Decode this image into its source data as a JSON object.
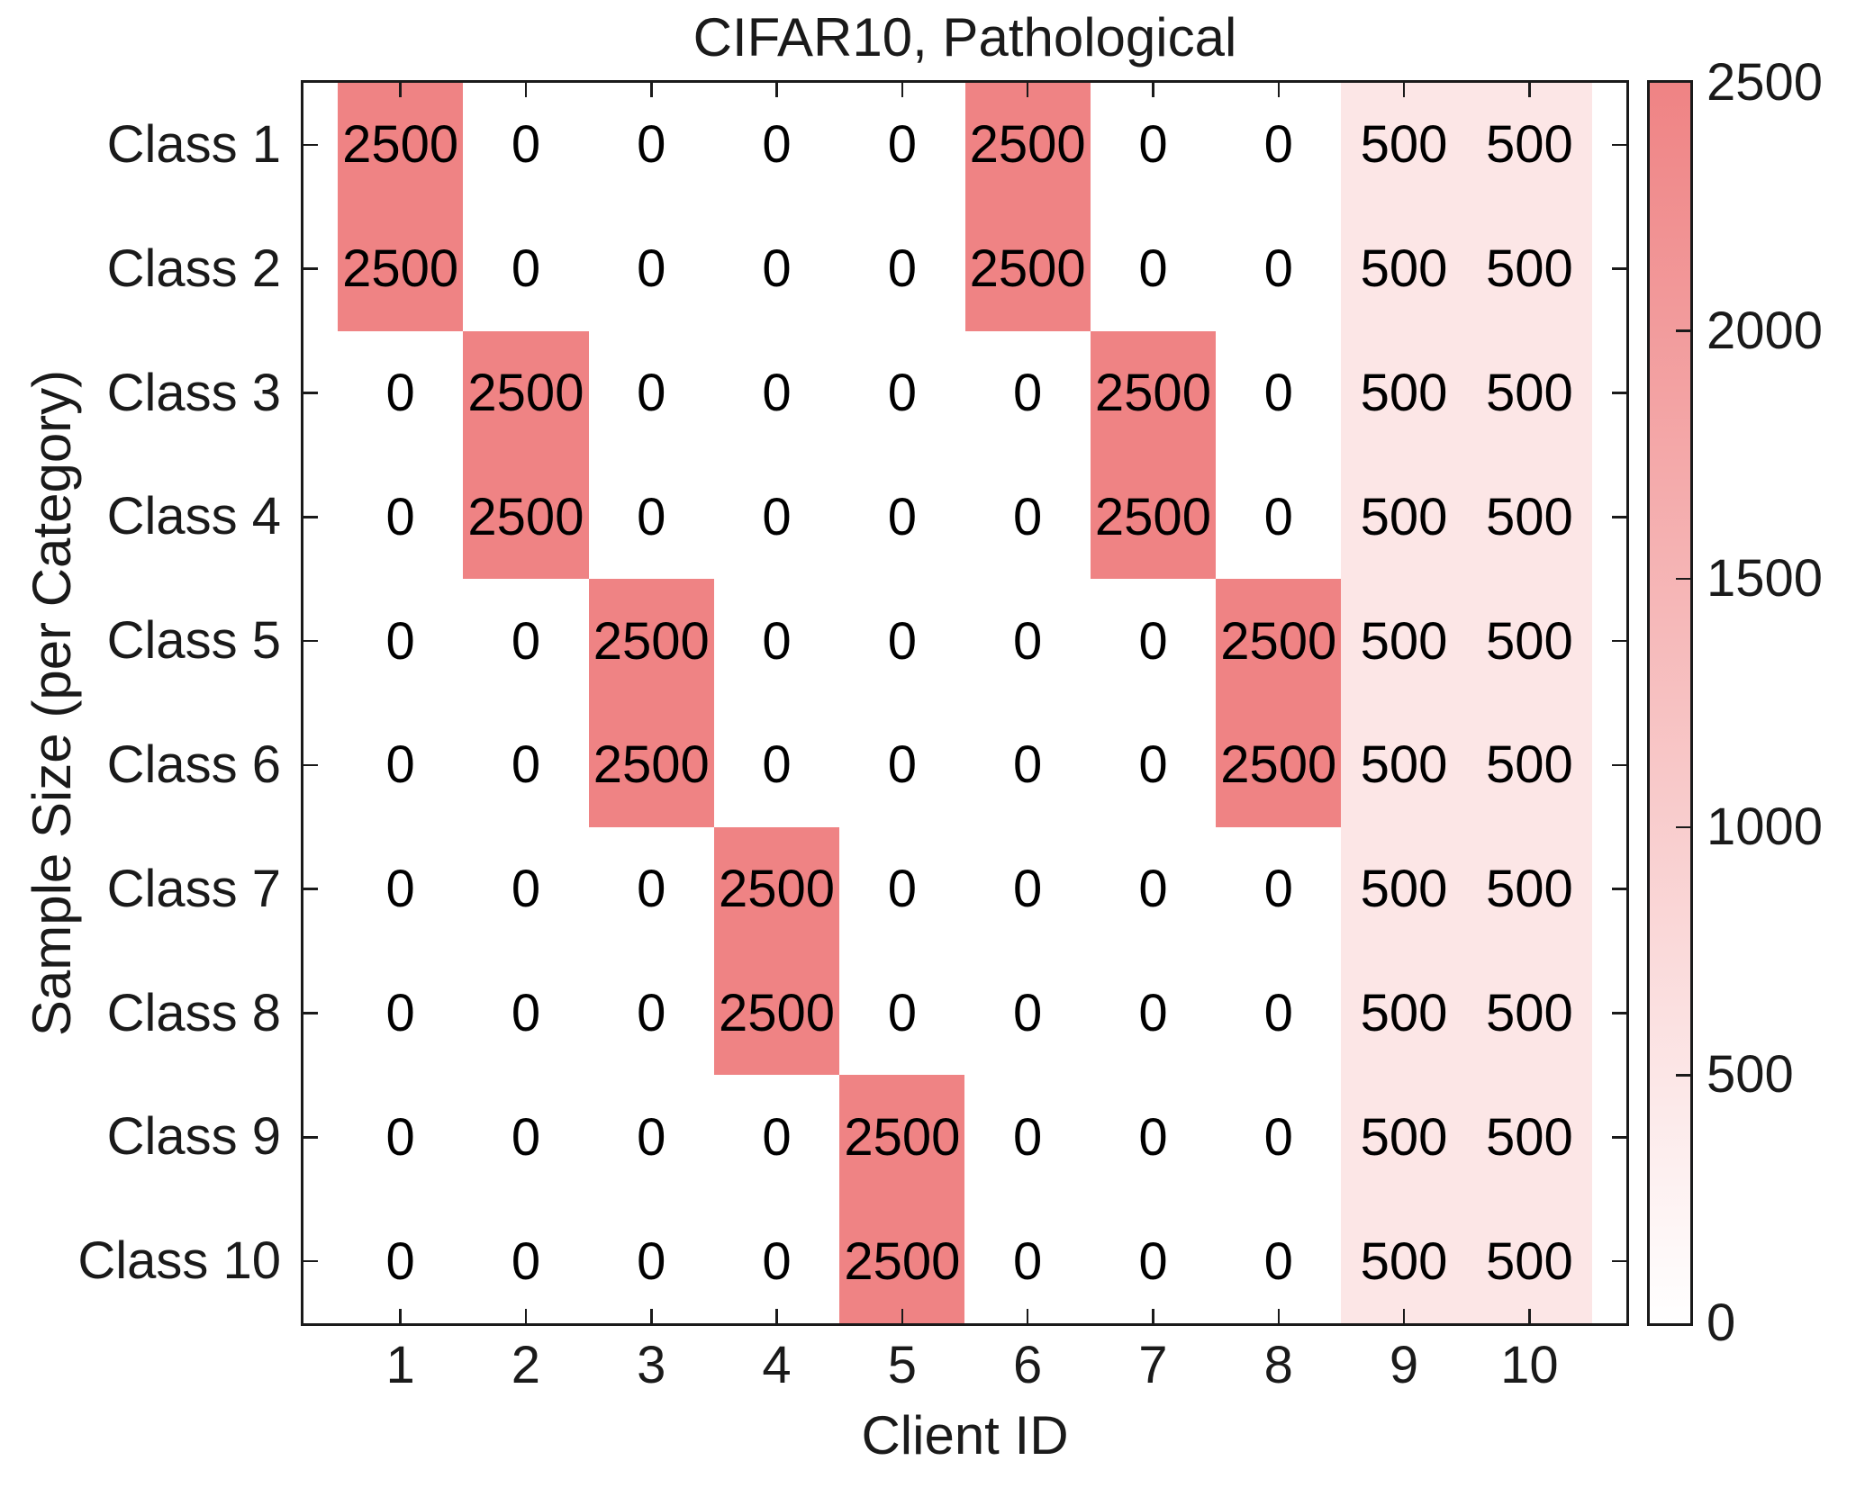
{
  "chart_data": {
    "type": "heatmap",
    "title": "CIFAR10, Pathological",
    "xlabel": "Client ID",
    "ylabel": "Sample Size (per Category)",
    "x_categories": [
      "1",
      "2",
      "3",
      "4",
      "5",
      "6",
      "7",
      "8",
      "9",
      "10"
    ],
    "y_categories": [
      "Class 1",
      "Class 2",
      "Class 3",
      "Class 4",
      "Class 5",
      "Class 6",
      "Class 7",
      "Class 8",
      "Class 9",
      "Class 10"
    ],
    "matrix": [
      [
        2500,
        0,
        0,
        0,
        0,
        2500,
        0,
        0,
        500,
        500
      ],
      [
        2500,
        0,
        0,
        0,
        0,
        2500,
        0,
        0,
        500,
        500
      ],
      [
        0,
        2500,
        0,
        0,
        0,
        0,
        2500,
        0,
        500,
        500
      ],
      [
        0,
        2500,
        0,
        0,
        0,
        0,
        2500,
        0,
        500,
        500
      ],
      [
        0,
        0,
        2500,
        0,
        0,
        0,
        0,
        2500,
        500,
        500
      ],
      [
        0,
        0,
        2500,
        0,
        0,
        0,
        0,
        2500,
        500,
        500
      ],
      [
        0,
        0,
        0,
        2500,
        0,
        0,
        0,
        0,
        500,
        500
      ],
      [
        0,
        0,
        0,
        2500,
        0,
        0,
        0,
        0,
        500,
        500
      ],
      [
        0,
        0,
        0,
        0,
        2500,
        0,
        0,
        0,
        500,
        500
      ],
      [
        0,
        0,
        0,
        0,
        2500,
        0,
        0,
        0,
        500,
        500
      ]
    ],
    "colorbar": {
      "min": 0,
      "max": 2500,
      "tick_values": [
        2500,
        2000,
        1500,
        1000,
        500,
        0
      ],
      "tick_labels": [
        "2500",
        "2000",
        "1500",
        "1000",
        "500",
        "0"
      ],
      "position": "right"
    },
    "colors": {
      "high": "#ef8384",
      "low": "#ffffff",
      "axis": "#1a1a1a"
    },
    "layout": {
      "grid": "off",
      "tick_direction": "in",
      "ticks_all_sides": true
    }
  }
}
